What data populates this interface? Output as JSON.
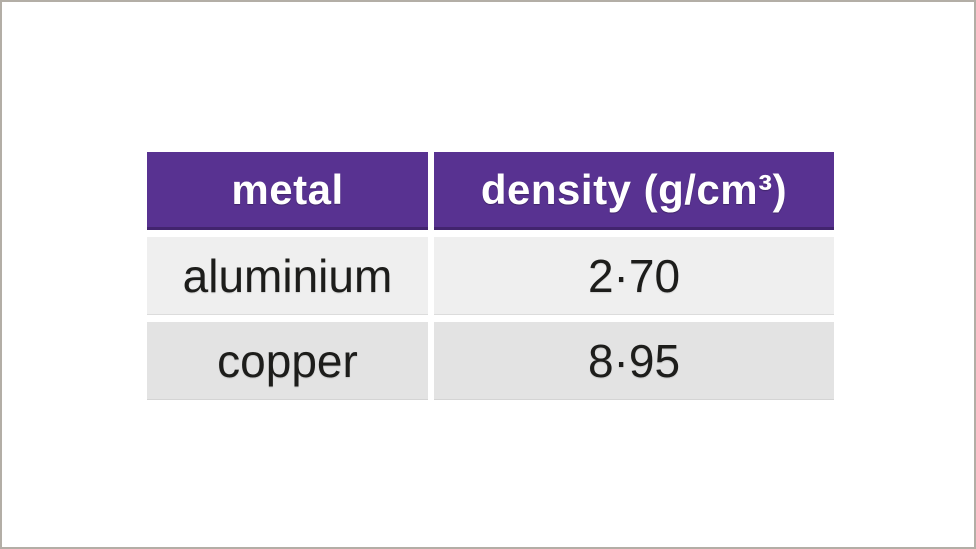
{
  "frame": {
    "background": "#ffffff",
    "border_color": "#b3aea6"
  },
  "colors": {
    "header_bg": "#583291",
    "header_border_bottom": "#42246e",
    "header_text": "#ffffff",
    "row_light_bg": "#efefef",
    "row_dark_bg": "#e3e3e3",
    "body_text": "#1d1d1b"
  },
  "table": {
    "columns": [
      "metal",
      "density (g/cm³)"
    ],
    "rows": [
      {
        "metal": "aluminium",
        "density": "2·70"
      },
      {
        "metal": "copper",
        "density": "8·95"
      }
    ]
  },
  "chart_data": {
    "type": "table",
    "title": "",
    "columns": [
      "metal",
      "density (g/cm³)"
    ],
    "rows": [
      [
        "aluminium",
        "2·70"
      ],
      [
        "copper",
        "8·95"
      ]
    ],
    "notes": "Decimal separator rendered as interpunct (·); densities in g/cm³: aluminium 2.70, copper 8.95"
  }
}
